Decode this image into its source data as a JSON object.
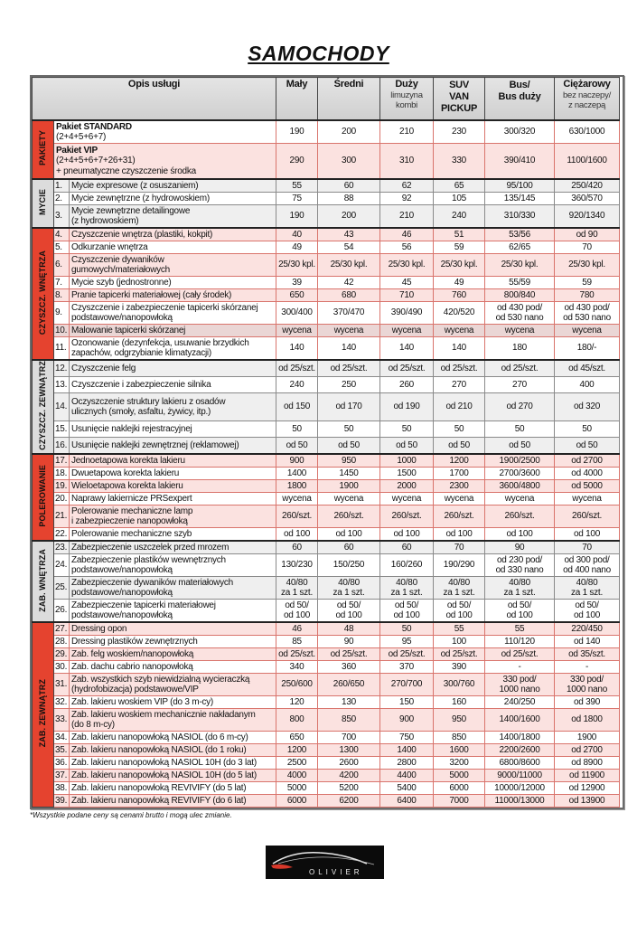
{
  "title": "SAMOCHODY",
  "header": {
    "desc": "Opis usługi",
    "cols": [
      {
        "main": "Mały",
        "sub": ""
      },
      {
        "main": "Średni",
        "sub": ""
      },
      {
        "main": "Duży",
        "sub": "limuzyna\nkombi"
      },
      {
        "main": "SUV\nVAN\nPICKUP",
        "sub": ""
      },
      {
        "main": "Bus/\nBus duży",
        "sub": ""
      },
      {
        "main": "Ciężarowy",
        "sub": "bez naczepy/\nz naczepą"
      }
    ]
  },
  "sections": [
    {
      "label": "PAKIETY",
      "color": "red",
      "rows": [
        {
          "title": "Pakiet  STANDARD",
          "desc": "(2+4+5+6+7)",
          "prices": [
            "190",
            "200",
            "210",
            "230",
            "300/320",
            "630/1000"
          ]
        },
        {
          "title": "Pakiet  VIP",
          "desc": "(2+4+5+6+7+26+31)\n+ pneumatyczne czyszczenie środka",
          "prices": [
            "290",
            "300",
            "310",
            "330",
            "390/410",
            "1100/1600"
          ]
        }
      ]
    },
    {
      "label": "MYCIE",
      "color": "grey",
      "rows": [
        {
          "num": "1.",
          "desc": "Mycie expresowe (z osuszaniem)",
          "prices": [
            "55",
            "60",
            "62",
            "65",
            "95/100",
            "250/420"
          ]
        },
        {
          "num": "2.",
          "desc": "Mycie zewnętrzne (z hydrowoskiem)",
          "prices": [
            "75",
            "88",
            "92",
            "105",
            "135/145",
            "360/570"
          ]
        },
        {
          "num": "3.",
          "desc": "Mycie zewnętrzne detailingowe\n(z hydrowoskiem)",
          "prices": [
            "190",
            "200",
            "210",
            "240",
            "310/330",
            "920/1340"
          ]
        }
      ]
    },
    {
      "label": "CZYSZCZ. WNĘTRZA",
      "color": "red",
      "rows": [
        {
          "num": "4.",
          "desc": "Czyszczenie wnętrza (plastiki, kokpit)",
          "prices": [
            "40",
            "43",
            "46",
            "51",
            "53/56",
            "od 90"
          ]
        },
        {
          "num": "5.",
          "desc": "Odkurzanie wnętrza",
          "prices": [
            "49",
            "54",
            "56",
            "59",
            "62/65",
            "70"
          ]
        },
        {
          "num": "6.",
          "desc": "Czyszczenie dywaników\ngumowych/materiałowych",
          "prices": [
            "25/30 kpl.",
            "25/30 kpl.",
            "25/30 kpl.",
            "25/30 kpl.",
            "25/30 kpl.",
            "25/30 kpl."
          ]
        },
        {
          "num": "7.",
          "desc": "Mycie szyb (jednostronne)",
          "prices": [
            "39",
            "42",
            "45",
            "49",
            "55/59",
            "59"
          ]
        },
        {
          "num": "8.",
          "desc": "Pranie tapicerki materiałowej (cały środek)",
          "prices": [
            "650",
            "680",
            "710",
            "760",
            "800/840",
            "780"
          ]
        },
        {
          "num": "9.",
          "desc": "Czyszczenie i zabezpieczenie tapicerki skórzanej\npodstawowe/nanopowłoką",
          "prices": [
            "300/400",
            "370/470",
            "390/490",
            "420/520",
            "od 430 pod/\nod 530 nano",
            "od 430 pod/\nod 530 nano"
          ]
        },
        {
          "num": "10.",
          "desc": "Malowanie tapicerki skórzanej",
          "prices": [
            "wycena",
            "wycena",
            "wycena",
            "wycena",
            "wycena",
            "wycena"
          ],
          "highlight": true
        },
        {
          "num": "11.",
          "desc": "Ozonowanie (dezynfekcja, usuwanie brzydkich\nzapachów, odgrzybianie klimatyzacji)",
          "prices": [
            "140",
            "140",
            "140",
            "140",
            "180",
            "180/-"
          ]
        }
      ]
    },
    {
      "label": "CZYSZCZ. ZEWNĄTRZ",
      "color": "grey",
      "rows": [
        {
          "num": "12.",
          "desc": "Czyszczenie felg",
          "prices": [
            "od 25/szt.",
            "od 25/szt.",
            "od 25/szt.",
            "od 25/szt.",
            "od 25/szt.",
            "od 45/szt."
          ]
        },
        {
          "num": "13.",
          "desc": "Czyszczenie i zabezpieczenie silnika",
          "prices": [
            "240",
            "250",
            "260",
            "270",
            "270",
            "400"
          ]
        },
        {
          "num": "14.",
          "desc": "Oczyszczenie struktury lakieru z osadów\nulicznych (smoły, asfaltu, żywicy, itp.)",
          "prices": [
            "od 150",
            "od 170",
            "od 190",
            "od 210",
            "od 270",
            "od 320"
          ]
        },
        {
          "num": "15.",
          "desc": "Usunięcie naklejki rejestracyjnej",
          "prices": [
            "50",
            "50",
            "50",
            "50",
            "50",
            "50"
          ]
        },
        {
          "num": "16.",
          "desc": "Usunięcie naklejki zewnętrznej (reklamowej)",
          "prices": [
            "od 50",
            "od 50",
            "od 50",
            "od 50",
            "od 50",
            "od 50"
          ]
        }
      ]
    },
    {
      "label": "POLEROWANIE",
      "color": "red",
      "rows": [
        {
          "num": "17.",
          "desc": "Jednoetapowa korekta lakieru",
          "prices": [
            "900",
            "950",
            "1000",
            "1200",
            "1900/2500",
            "od 2700"
          ]
        },
        {
          "num": "18.",
          "desc": "Dwuetapowa korekta lakieru",
          "prices": [
            "1400",
            "1450",
            "1500",
            "1700",
            "2700/3600",
            "od 4000"
          ]
        },
        {
          "num": "19.",
          "desc": "Wieloetapowa korekta lakieru",
          "prices": [
            "1800",
            "1900",
            "2000",
            "2300",
            "3600/4800",
            "od 5000"
          ]
        },
        {
          "num": "20.",
          "desc": "Naprawy lakiernicze PRSexpert",
          "prices": [
            "wycena",
            "wycena",
            "wycena",
            "wycena",
            "wycena",
            "wycena"
          ]
        },
        {
          "num": "21.",
          "desc": "Polerowanie mechaniczne lamp\ni zabezpieczenie nanopowłoką",
          "prices": [
            "260/szt.",
            "260/szt.",
            "260/szt.",
            "260/szt.",
            "260/szt.",
            "260/szt."
          ]
        },
        {
          "num": "22.",
          "desc": "Polerowanie mechaniczne szyb",
          "prices": [
            "od 100",
            "od 100",
            "od 100",
            "od 100",
            "od 100",
            "od 100"
          ]
        }
      ]
    },
    {
      "label": "ZAB. WNĘTRZA",
      "color": "grey",
      "rows": [
        {
          "num": "23.",
          "desc": "Zabezpieczenie uszczelek przed mrozem",
          "prices": [
            "60",
            "60",
            "60",
            "70",
            "90",
            "70"
          ]
        },
        {
          "num": "24.",
          "desc": "Zabezpieczenie plastików wewnętrznych\npodstawowe/nanopowłoką",
          "prices": [
            "130/230",
            "150/250",
            "160/260",
            "190/290",
            "od 230 pod/\nod 330 nano",
            "od 300 pod/\nod 400 nano"
          ]
        },
        {
          "num": "25.",
          "desc": "Zabezpieczenie dywaników materiałowych\npodstawowe/nanopowłoką",
          "prices": [
            "40/80\nza 1 szt.",
            "40/80\nza 1 szt.",
            "40/80\nza 1 szt.",
            "40/80\nza 1 szt.",
            "40/80\nza 1 szt.",
            "40/80\nza 1 szt."
          ]
        },
        {
          "num": "26.",
          "desc": "Zabezpieczenie tapicerki materiałowej\npodstawowe/nanopowłoką",
          "prices": [
            "od 50/\nod 100",
            "od 50/\nod 100",
            "od 50/\nod 100",
            "od 50/\nod 100",
            "od 50/\nod 100",
            "od 50/\nod 100"
          ]
        }
      ]
    },
    {
      "label": "ZAB. ZEWNĄTRZ",
      "color": "red",
      "rows": [
        {
          "num": "27.",
          "desc": "Dressing opon",
          "prices": [
            "46",
            "48",
            "50",
            "55",
            "55",
            "220/450"
          ]
        },
        {
          "num": "28.",
          "desc": "Dressing plastików zewnętrznych",
          "prices": [
            "85",
            "90",
            "95",
            "100",
            "110/120",
            "od 140"
          ]
        },
        {
          "num": "29.",
          "desc": "Zab. felg woskiem/nanopowłoką",
          "prices": [
            "od 25/szt.",
            "od 25/szt.",
            "od 25/szt.",
            "od 25/szt.",
            "od 25/szt.",
            "od 35/szt."
          ]
        },
        {
          "num": "30.",
          "desc": "Zab. dachu cabrio nanopowłoką",
          "prices": [
            "340",
            "360",
            "370",
            "390",
            "-",
            "-"
          ]
        },
        {
          "num": "31.",
          "desc": "Zab. wszystkich szyb niewidzialną wycieraczką\n(hydrofobizacja) podstawowe/VIP",
          "prices": [
            "250/600",
            "260/650",
            "270/700",
            "300/760",
            "330 pod/\n1000 nano",
            "330 pod/\n1000 nano"
          ]
        },
        {
          "num": "32.",
          "desc": "Zab. lakieru woskiem VIP (do 3 m-cy)",
          "prices": [
            "120",
            "130",
            "150",
            "160",
            "240/250",
            "od 390"
          ]
        },
        {
          "num": "33.",
          "desc": "Zab. lakieru woskiem mechanicznie nakładanym\n(do 8 m-cy)",
          "prices": [
            "800",
            "850",
            "900",
            "950",
            "1400/1600",
            "od 1800"
          ]
        },
        {
          "num": "34.",
          "desc": "Zab. lakieru nanopowłoką NASIOL    (do 6 m-cy)",
          "prices": [
            "650",
            "700",
            "750",
            "850",
            "1400/1800",
            "1900"
          ]
        },
        {
          "num": "35.",
          "desc": "Zab. lakieru nanopowłoką NASIOL     (do 1 roku)",
          "prices": [
            "1200",
            "1300",
            "1400",
            "1600",
            "2200/2600",
            "od 2700"
          ]
        },
        {
          "num": "36.",
          "desc": "Zab. lakieru nanopowłoką NASIOL 10H (do 3 lat)",
          "prices": [
            "2500",
            "2600",
            "2800",
            "3200",
            "6800/8600",
            "od 8900"
          ]
        },
        {
          "num": "37.",
          "desc": "Zab. lakieru nanopowłoką NASIOL 10H (do 5 lat)",
          "prices": [
            "4000",
            "4200",
            "4400",
            "5000",
            "9000/11000",
            "od 11900"
          ]
        },
        {
          "num": "38.",
          "desc": "Zab. lakieru nanopowłoką REVIVIFY     (do 5 lat)",
          "prices": [
            "5000",
            "5200",
            "5400",
            "6000",
            "10000/12000",
            "od 12900"
          ]
        },
        {
          "num": "39.",
          "desc": "Zab. lakieru nanopowłoką REVIVIFY     (do 6 lat)",
          "prices": [
            "6000",
            "6200",
            "6400",
            "7000",
            "11000/13000",
            "od 13900"
          ]
        }
      ]
    }
  ],
  "footnote": "*Wszystkie podane ceny są cenami brutto i mogą ulec zmianie.",
  "logo": {
    "text": "OLIVIER"
  },
  "colors": {
    "section_red": "#e5432f",
    "section_grey": "#dcdcdc",
    "row_pink": "#fbe2e0"
  }
}
